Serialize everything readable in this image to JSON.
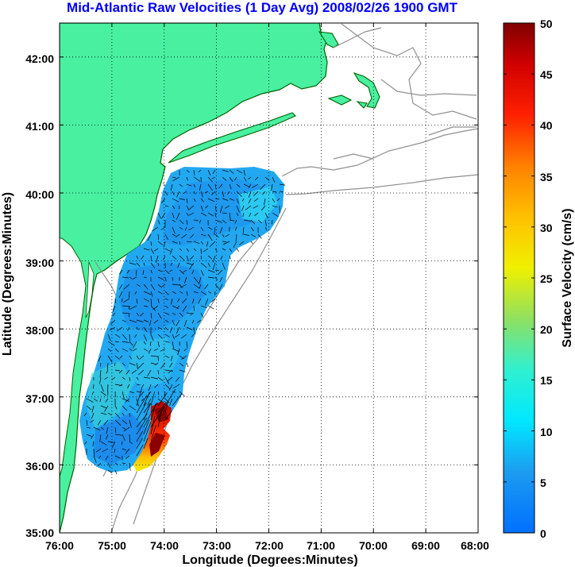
{
  "title": "Mid-Atlantic Raw Velocities (1 Day Avg) 2008/02/26 1900 GMT",
  "x_axis": {
    "label": "Longitude (Degrees:Minutes)",
    "ticks": [
      "76:00",
      "75:00",
      "74:00",
      "73:00",
      "72:00",
      "71:00",
      "70:00",
      "69:00",
      "68:00"
    ]
  },
  "y_axis": {
    "label": "Latitude (Degrees:Minutes)",
    "ticks": [
      "42:00",
      "41:00",
      "40:00",
      "39:00",
      "38:00",
      "37:00",
      "36:00",
      "35:00"
    ]
  },
  "colorbar": {
    "label": "Surface Velocity (cm/s)",
    "ticks": [
      "50",
      "45",
      "40",
      "35",
      "30",
      "25",
      "20",
      "15",
      "10",
      "5",
      "0"
    ],
    "range": [
      0,
      50
    ]
  },
  "colors": {
    "land": "#48f0a0",
    "coast": "#006000",
    "bathymetry": "#909090",
    "grid": "#000000",
    "title": "#0000ff",
    "arrows": "#000000"
  },
  "map": {
    "lon_range": [
      -76,
      -68
    ],
    "lat_range": [
      35,
      42.5
    ],
    "grid": "dotted"
  }
}
